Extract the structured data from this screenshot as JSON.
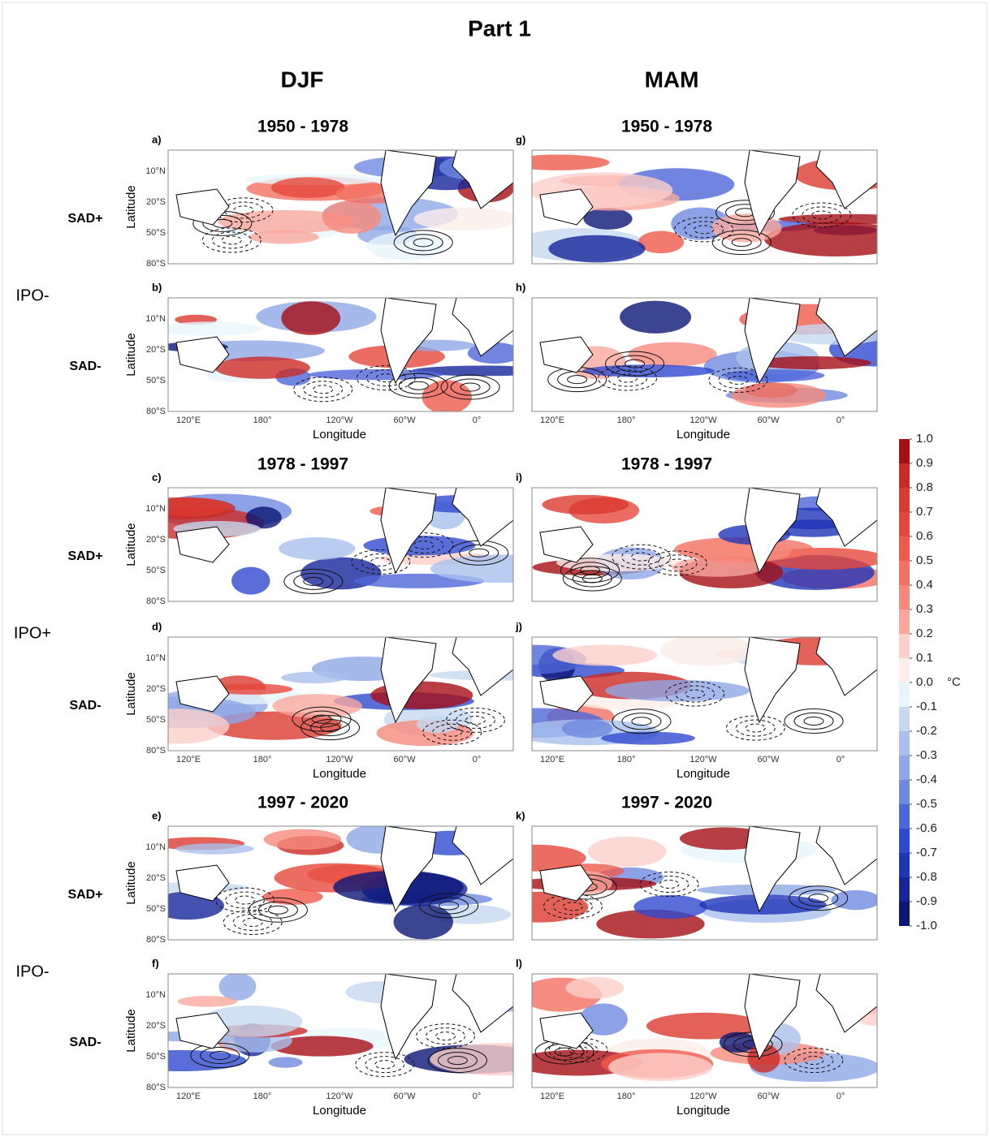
{
  "title": "Part 1",
  "columns": [
    {
      "header": "DJF",
      "panel_letters": [
        "a)",
        "b)",
        "c)",
        "d)",
        "e)",
        "f)"
      ]
    },
    {
      "header": "MAM",
      "panel_letters": [
        "g)",
        "h)",
        "i)",
        "j)",
        "k)",
        "l)"
      ]
    }
  ],
  "periods": [
    "1950 - 1978",
    "1978 - 1997",
    "1997 - 2020"
  ],
  "sad_labels": [
    "SAD+",
    "SAD-",
    "SAD+",
    "SAD-",
    "SAD+",
    "SAD-"
  ],
  "ipo_labels": [
    "IPO-",
    "IPO+",
    "IPO-"
  ],
  "axes": {
    "ylabel": "Latitude",
    "xlabel": "Longitude",
    "lat_ticks": [
      "10°N",
      "20°S",
      "50°S",
      "80°S"
    ],
    "lon_ticks": [
      "120°E",
      "180°",
      "120°W",
      "60°W",
      "0°"
    ]
  },
  "colorbar": {
    "unit": "°C",
    "ticks": [
      {
        "value": 1,
        "label": "1.0"
      },
      {
        "value": 0.9,
        "label": "0.9"
      },
      {
        "value": 0.8,
        "label": "0.8"
      },
      {
        "value": 0.7,
        "label": "0.7"
      },
      {
        "value": 0.6,
        "label": "0.6"
      },
      {
        "value": 0.5,
        "label": "0.5"
      },
      {
        "value": 0.4,
        "label": "0.4"
      },
      {
        "value": 0.3,
        "label": "0.3"
      },
      {
        "value": 0.2,
        "label": "0.2"
      },
      {
        "value": 0.1,
        "label": "0.1"
      },
      {
        "value": 0,
        "label": "0.0"
      },
      {
        "value": -0.1,
        "label": "-0.1"
      },
      {
        "value": -0.2,
        "label": "-0.2"
      },
      {
        "value": -0.3,
        "label": "-0.3"
      },
      {
        "value": -0.4,
        "label": "-0.4"
      },
      {
        "value": -0.5,
        "label": "-0.5"
      },
      {
        "value": -0.6,
        "label": "-0.6"
      },
      {
        "value": -0.7,
        "label": "-0.7"
      },
      {
        "value": -0.8,
        "label": "-0.8"
      },
      {
        "value": -0.9,
        "label": "-0.9"
      },
      {
        "value": -1,
        "label": "-1.0"
      }
    ],
    "colors": [
      "#a50f15",
      "#cc2a26",
      "#db3a2f",
      "#e6473b",
      "#ef5a4c",
      "#f37163",
      "#f6897c",
      "#f9a79d",
      "#fcd0ca",
      "#fdeee9",
      "#e8f6fb",
      "#c5d8f0",
      "#a9c0ec",
      "#8ea7e6",
      "#6f89e0",
      "#4d67d8",
      "#2f4ad0",
      "#1f35b8",
      "#15259a",
      "#0b1675"
    ]
  }
}
